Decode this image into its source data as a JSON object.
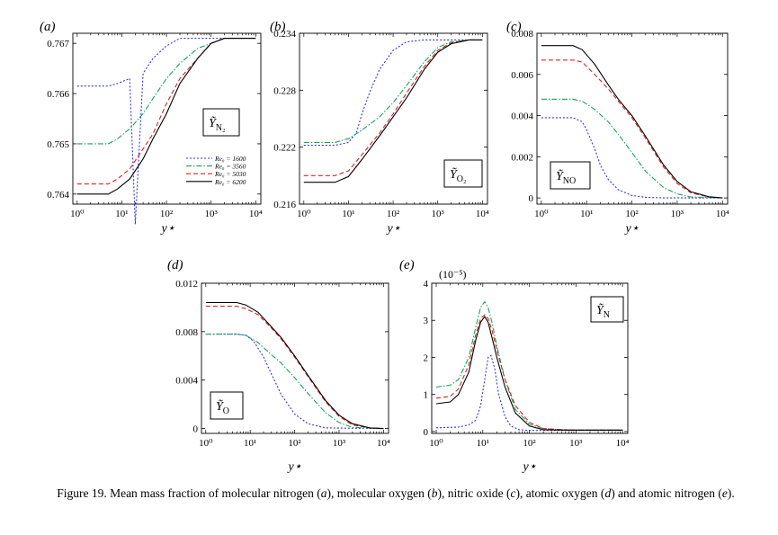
{
  "caption_parts": {
    "p1": "Figure  19.  Mean mass fraction of molecular nitrogen (",
    "a": "a",
    "p2": "), molecular oxygen (",
    "b": "b",
    "p3": "), nitric oxide (",
    "c": "c",
    "p4": "), atomic oxygen (",
    "d": "d",
    "p5": ") and atomic nitrogen (",
    "e": "e",
    "p6": ")."
  },
  "legend": {
    "entries": [
      {
        "label": "Re₀ = 1600",
        "color": "#3333dd",
        "dash": "2,2"
      },
      {
        "label": "Re₀ = 3560",
        "color": "#1aa35a",
        "dash": "6,2,1.5,2"
      },
      {
        "label": "Re₀ = 5030",
        "color": "#dd2222",
        "dash": "5,3"
      },
      {
        "label": "Re₀ = 6200",
        "color": "#000000",
        "dash": ""
      }
    ]
  },
  "chart_data": [
    {
      "id": "a",
      "panel_label": "(a)",
      "type": "line",
      "xlabel": "y⋆",
      "log_x": true,
      "xlim": [
        0.8,
        13000
      ],
      "ylim": [
        0.7638,
        0.7672
      ],
      "yticks": [
        0.764,
        0.765,
        0.766,
        0.767
      ],
      "ytick_labels": [
        "0.764",
        "0.765",
        "0.766",
        "0.767"
      ],
      "xticks": [
        1,
        10,
        100,
        1000,
        10000
      ],
      "xtick_labels": [
        "10⁰",
        "10¹",
        "10²",
        "10³",
        "10⁴"
      ],
      "series_label": "Ỹ N₂",
      "series": [
        {
          "x": [
            1,
            5,
            8,
            15,
            20,
            30,
            50,
            100,
            200,
            500,
            1000,
            3000,
            10000
          ],
          "y": [
            0.76615,
            0.76615,
            0.7662,
            0.7663,
            0.7634,
            0.7664,
            0.7667,
            0.76695,
            0.7671,
            0.7671,
            0.7671,
            0.7671,
            0.7671
          ]
        },
        {
          "x": [
            1,
            5,
            8,
            15,
            30,
            50,
            100,
            200,
            500,
            1000,
            2000,
            5000,
            10000
          ],
          "y": [
            0.765,
            0.765,
            0.7651,
            0.7653,
            0.7656,
            0.7659,
            0.7663,
            0.7666,
            0.7669,
            0.767,
            0.7671,
            0.7671,
            0.7671
          ]
        },
        {
          "x": [
            1,
            5,
            8,
            15,
            30,
            50,
            100,
            200,
            500,
            1000,
            2000,
            5000,
            10000
          ],
          "y": [
            0.7642,
            0.7642,
            0.7643,
            0.7645,
            0.7649,
            0.7652,
            0.7658,
            0.7663,
            0.7667,
            0.767,
            0.7671,
            0.7671,
            0.7671
          ]
        },
        {
          "x": [
            1,
            5,
            8,
            15,
            30,
            50,
            100,
            200,
            500,
            1000,
            2000,
            5000,
            10000
          ],
          "y": [
            0.764,
            0.764,
            0.7641,
            0.7643,
            0.7647,
            0.7651,
            0.7656,
            0.7662,
            0.7667,
            0.767,
            0.7671,
            0.7671,
            0.7671
          ]
        }
      ]
    },
    {
      "id": "b",
      "panel_label": "(b)",
      "type": "line",
      "xlabel": "y⋆",
      "log_x": true,
      "xlim": [
        0.8,
        13000
      ],
      "ylim": [
        0.216,
        0.234
      ],
      "yticks": [
        0.216,
        0.222,
        0.228,
        0.234
      ],
      "ytick_labels": [
        "0.216",
        "0.222",
        "0.228",
        "0.234"
      ],
      "xticks": [
        1,
        10,
        100,
        1000,
        10000
      ],
      "xtick_labels": [
        "10⁰",
        "10¹",
        "10²",
        "10³",
        "10⁴"
      ],
      "series_label": "Ỹ O₂",
      "series": [
        {
          "x": [
            1,
            5,
            10,
            15,
            20,
            30,
            50,
            100,
            200,
            500,
            1000,
            10000
          ],
          "y": [
            0.2222,
            0.2222,
            0.2225,
            0.2235,
            0.2255,
            0.2278,
            0.2302,
            0.2322,
            0.2331,
            0.2333,
            0.2333,
            0.2333
          ]
        },
        {
          "x": [
            1,
            5,
            10,
            20,
            50,
            100,
            200,
            500,
            1000,
            2000,
            5000,
            10000
          ],
          "y": [
            0.2225,
            0.2225,
            0.2229,
            0.2238,
            0.2252,
            0.2267,
            0.2285,
            0.231,
            0.2325,
            0.2331,
            0.2333,
            0.2333
          ]
        },
        {
          "x": [
            1,
            5,
            10,
            20,
            50,
            100,
            200,
            500,
            1000,
            2000,
            5000,
            10000
          ],
          "y": [
            0.219,
            0.219,
            0.2195,
            0.2212,
            0.2235,
            0.2255,
            0.2277,
            0.2305,
            0.2322,
            0.233,
            0.2333,
            0.2333
          ]
        },
        {
          "x": [
            1,
            5,
            10,
            20,
            50,
            100,
            200,
            500,
            1000,
            2000,
            5000,
            10000
          ],
          "y": [
            0.2183,
            0.2183,
            0.2189,
            0.2207,
            0.2232,
            0.2252,
            0.2272,
            0.2302,
            0.232,
            0.2329,
            0.2333,
            0.2333
          ]
        }
      ]
    },
    {
      "id": "c",
      "panel_label": "(c)",
      "type": "line",
      "xlabel": "y⋆",
      "log_x": true,
      "xlim": [
        0.8,
        13000
      ],
      "ylim": [
        -0.0003,
        0.008
      ],
      "yticks": [
        0,
        0.002,
        0.004,
        0.006,
        0.008
      ],
      "ytick_labels": [
        "0",
        "0.002",
        "0.004",
        "0.006",
        "0.008"
      ],
      "xticks": [
        1,
        10,
        100,
        1000,
        10000
      ],
      "xtick_labels": [
        "10⁰",
        "10¹",
        "10²",
        "10³",
        "10⁴"
      ],
      "series_label": "Ỹ NO",
      "series": [
        {
          "x": [
            1,
            5,
            8,
            10,
            15,
            20,
            30,
            50,
            100,
            200,
            500,
            10000
          ],
          "y": [
            0.0039,
            0.0039,
            0.0037,
            0.0033,
            0.0024,
            0.0016,
            0.0009,
            0.0004,
            0.00012,
            3e-05,
            0,
            0
          ]
        },
        {
          "x": [
            1,
            5,
            8,
            15,
            30,
            50,
            100,
            200,
            500,
            1000,
            2000,
            10000
          ],
          "y": [
            0.0048,
            0.0048,
            0.0047,
            0.0043,
            0.0037,
            0.0031,
            0.0022,
            0.0013,
            0.0005,
            0.0002,
            5e-05,
            0
          ]
        },
        {
          "x": [
            1,
            5,
            8,
            15,
            30,
            50,
            100,
            200,
            500,
            1000,
            2000,
            5000,
            10000
          ],
          "y": [
            0.0067,
            0.0067,
            0.0066,
            0.006,
            0.0053,
            0.0047,
            0.0039,
            0.0029,
            0.0015,
            0.0007,
            0.00025,
            5e-05,
            0
          ]
        },
        {
          "x": [
            1,
            5,
            8,
            15,
            30,
            50,
            100,
            200,
            500,
            1000,
            2000,
            5000,
            10000
          ],
          "y": [
            0.0074,
            0.0074,
            0.0072,
            0.0065,
            0.0055,
            0.0048,
            0.004,
            0.003,
            0.0016,
            0.0008,
            0.0003,
            6e-05,
            0
          ]
        }
      ]
    },
    {
      "id": "d",
      "panel_label": "(d)",
      "type": "line",
      "xlabel": "y⋆",
      "log_x": true,
      "xlim": [
        0.8,
        13000
      ],
      "ylim": [
        -0.0004,
        0.012
      ],
      "yticks": [
        0,
        0.004,
        0.008,
        0.012
      ],
      "ytick_labels": [
        "0",
        "0.004",
        "0.008",
        "0.012"
      ],
      "xticks": [
        1,
        10,
        100,
        1000,
        10000
      ],
      "xtick_labels": [
        "10⁰",
        "10¹",
        "10²",
        "10³",
        "10⁴"
      ],
      "series_label": "Ỹ O",
      "series": [
        {
          "x": [
            1,
            5,
            8,
            12,
            20,
            30,
            50,
            100,
            200,
            500,
            10000
          ],
          "y": [
            0.0078,
            0.0078,
            0.0077,
            0.0072,
            0.0059,
            0.0045,
            0.0028,
            0.0012,
            0.0004,
            5e-05,
            0
          ]
        },
        {
          "x": [
            1,
            5,
            8,
            15,
            30,
            50,
            100,
            200,
            500,
            1000,
            2000,
            10000
          ],
          "y": [
            0.0078,
            0.0078,
            0.0077,
            0.0071,
            0.0061,
            0.0054,
            0.0042,
            0.0029,
            0.0013,
            0.0005,
            0.0001,
            0
          ]
        },
        {
          "x": [
            1,
            5,
            8,
            15,
            30,
            50,
            100,
            200,
            500,
            1000,
            2000,
            5000,
            10000
          ],
          "y": [
            0.0101,
            0.0101,
            0.0099,
            0.0094,
            0.0083,
            0.0074,
            0.0059,
            0.0043,
            0.0022,
            0.001,
            0.0003,
            5e-05,
            0
          ]
        },
        {
          "x": [
            1,
            5,
            8,
            15,
            30,
            50,
            100,
            200,
            500,
            1000,
            2000,
            5000,
            10000
          ],
          "y": [
            0.0104,
            0.0104,
            0.0102,
            0.0096,
            0.0084,
            0.0075,
            0.006,
            0.0044,
            0.0023,
            0.0011,
            0.0004,
            5e-05,
            0
          ]
        }
      ]
    },
    {
      "id": "e",
      "panel_label": "(e)",
      "type": "line",
      "xlabel": "y⋆",
      "log_x": true,
      "scale_label": "(10⁻⁵)",
      "xlim": [
        0.8,
        13000
      ],
      "ylim": [
        -0.05,
        4
      ],
      "yticks": [
        0,
        1,
        2,
        3,
        4
      ],
      "ytick_labels": [
        "0",
        "1",
        "2",
        "3",
        "4"
      ],
      "xticks": [
        1,
        10,
        100,
        1000,
        10000
      ],
      "xtick_labels": [
        "10⁰",
        "10¹",
        "10²",
        "10³",
        "10⁴"
      ],
      "series_label": "Ỹ N",
      "series": [
        {
          "x": [
            1,
            3,
            5,
            7,
            9,
            11,
            13,
            15,
            18,
            22,
            30,
            40,
            60,
            100,
            1000,
            10000
          ],
          "y": [
            0.1,
            0.12,
            0.18,
            0.3,
            0.7,
            1.4,
            2.0,
            2.05,
            1.7,
            1.0,
            0.4,
            0.15,
            0.05,
            0.03,
            0.03,
            0.03
          ]
        },
        {
          "x": [
            1,
            2,
            3,
            5,
            7,
            9,
            11,
            13,
            16,
            20,
            30,
            50,
            100,
            200,
            500,
            1000,
            10000
          ],
          "y": [
            1.2,
            1.25,
            1.4,
            2.0,
            2.8,
            3.35,
            3.5,
            3.35,
            2.9,
            2.3,
            1.4,
            0.6,
            0.2,
            0.08,
            0.05,
            0.04,
            0.04
          ]
        },
        {
          "x": [
            1,
            2,
            3,
            5,
            7,
            9,
            11,
            13,
            16,
            20,
            30,
            50,
            100,
            200,
            500,
            1000,
            10000
          ],
          "y": [
            0.9,
            0.95,
            1.15,
            1.8,
            2.6,
            3.05,
            3.15,
            3.05,
            2.7,
            2.2,
            1.4,
            0.7,
            0.25,
            0.08,
            0.05,
            0.04,
            0.04
          ]
        },
        {
          "x": [
            1,
            2,
            3,
            5,
            7,
            9,
            11,
            13,
            16,
            20,
            30,
            50,
            100,
            200,
            500,
            1000,
            10000
          ],
          "y": [
            0.75,
            0.8,
            1.0,
            1.6,
            2.45,
            2.95,
            3.1,
            2.95,
            2.5,
            2.0,
            1.2,
            0.5,
            0.15,
            0.05,
            0.04,
            0.04,
            0.04
          ]
        }
      ]
    }
  ]
}
